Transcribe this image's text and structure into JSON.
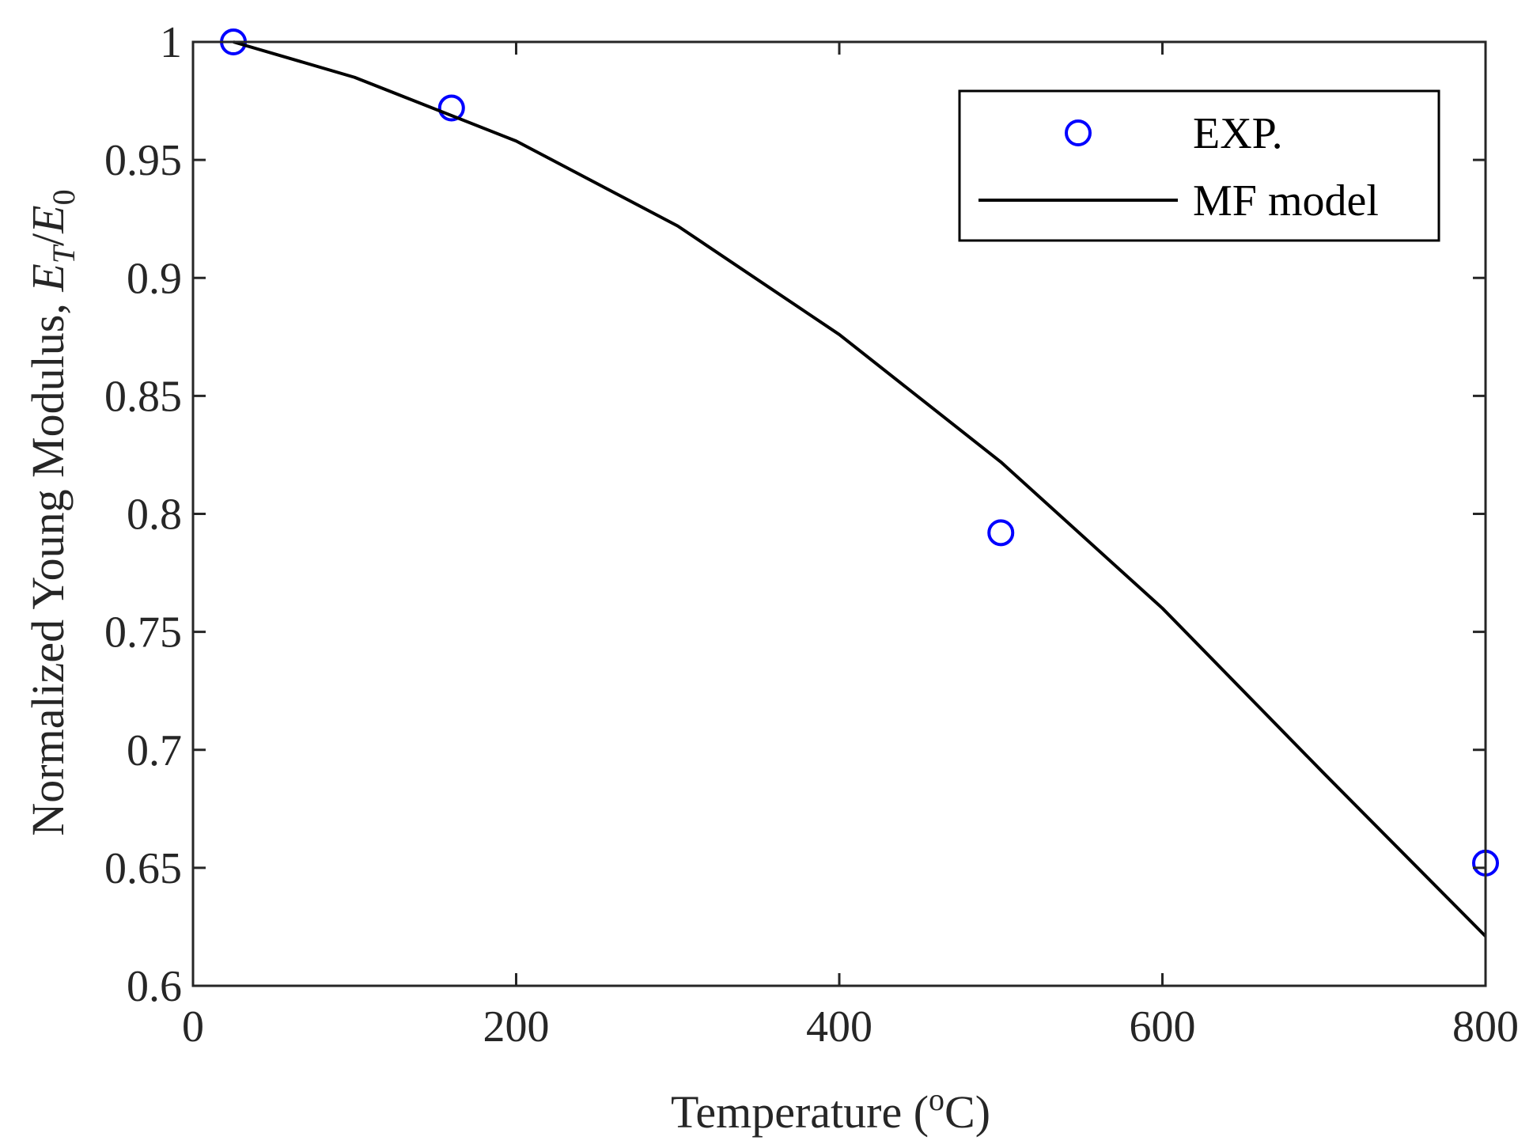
{
  "chart_data": {
    "type": "line",
    "xlabel": "Temperature (",
    "xlabel_sup": "o",
    "xlabel_end": "C)",
    "ylabel": "Normalized Young Modulus, ",
    "ylabel_math": {
      "e_t": "E",
      "sub_t": "T",
      "slash": "/",
      "e_0": "E",
      "sub_0": "0"
    },
    "xlim": [
      0,
      800
    ],
    "ylim": [
      0.6,
      1
    ],
    "xticks": [
      0,
      200,
      400,
      600,
      800
    ],
    "xtick_labels": [
      "0",
      "200",
      "400",
      "600",
      "800"
    ],
    "yticks": [
      0.6,
      0.65,
      0.7,
      0.75,
      0.8,
      0.85,
      0.9,
      0.95,
      1
    ],
    "ytick_labels": [
      "0.6",
      "0.65",
      "0.7",
      "0.75",
      "0.8",
      "0.85",
      "0.9",
      "0.95",
      "1"
    ],
    "grid": false,
    "legend_position": "top-right",
    "series": [
      {
        "name": "EXP.",
        "style": "marker-circle",
        "color": "#0000ff",
        "x": [
          25,
          160,
          500,
          800
        ],
        "y": [
          1.0,
          0.972,
          0.792,
          0.652
        ]
      },
      {
        "name": "MF model",
        "style": "line",
        "color": "#000000",
        "x": [
          25,
          100,
          200,
          300,
          400,
          500,
          600,
          700,
          800
        ],
        "y": [
          1.0,
          0.985,
          0.958,
          0.922,
          0.876,
          0.822,
          0.76,
          0.69,
          0.621
        ]
      }
    ]
  }
}
